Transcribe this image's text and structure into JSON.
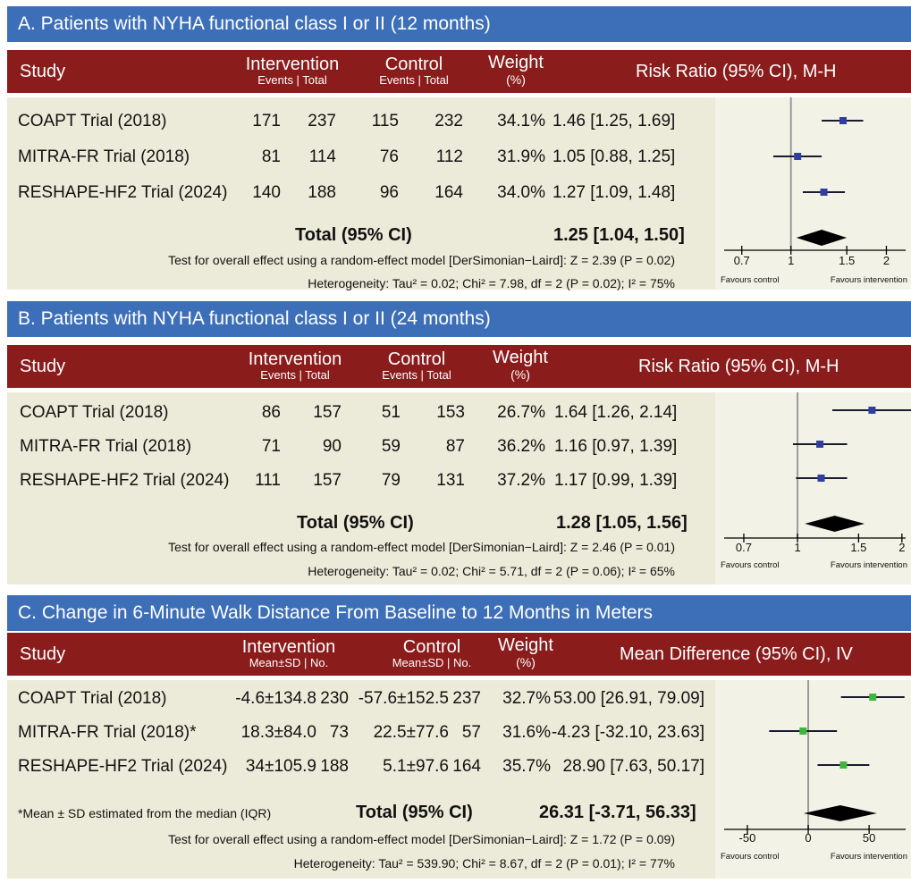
{
  "columns": {
    "study": "Study",
    "intervention": "Intervention",
    "control": "Control",
    "weight": "Weight",
    "weight_unit": "(%)",
    "events_total": "Events | Total",
    "mean_sd_no": "Mean±SD | No."
  },
  "chart_data": [
    {
      "type": "forest",
      "title": "A. Patients with NYHA functional class I or II (12 months)",
      "effect_header": "Risk Ratio (95% CI), M-H",
      "subheader": "Events | Total",
      "studies": [
        {
          "name": "COAPT Trial (2018)",
          "int_a": "171",
          "int_b": "237",
          "ctl_a": "115",
          "ctl_b": "232",
          "weight": "34.1%",
          "effect_text": "1.46 [1.25, 1.69]",
          "est": 1.46,
          "lo": 1.25,
          "hi": 1.69
        },
        {
          "name": "MITRA-FR Trial (2018)",
          "int_a": "81",
          "int_b": "114",
          "ctl_a": "76",
          "ctl_b": "112",
          "weight": "31.9%",
          "effect_text": "1.05 [0.88, 1.25]",
          "est": 1.05,
          "lo": 0.88,
          "hi": 1.25
        },
        {
          "name": "RESHAPE-HF2 Trial (2024)",
          "int_a": "140",
          "int_b": "188",
          "ctl_a": "96",
          "ctl_b": "164",
          "weight": "34.0%",
          "effect_text": "1.27 [1.09, 1.48]",
          "est": 1.27,
          "lo": 1.09,
          "hi": 1.48
        }
      ],
      "total_label": "Total (95% CI)",
      "total_text": "1.25 [1.04, 1.50]",
      "total": {
        "est": 1.25,
        "lo": 1.04,
        "hi": 1.5
      },
      "test_overall": "Test for overall effect using a random-effect model [DerSimonian−Laird]: Z = 2.39 (P = 0.02)",
      "heterogeneity": "Heterogeneity: Tau² = 0.02; Chi² = 7.98, df = 2 (P = 0.02); I² = 75%",
      "scale": "log",
      "xlim": [
        0.6,
        2.3
      ],
      "null_value": 1,
      "ticks": [
        {
          "v": 0.7,
          "label": "0.7"
        },
        {
          "v": 1,
          "label": "1"
        },
        {
          "v": 1.5,
          "label": "1.5"
        },
        {
          "v": 2,
          "label": "2"
        }
      ],
      "favours_left": "Favours control",
      "favours_right": "Favours intervention",
      "marker_color": "#2f3fa0",
      "note": ""
    },
    {
      "type": "forest",
      "title": "B. Patients with NYHA functional class I or II (24 months)",
      "effect_header": "Risk Ratio (95% CI), M-H",
      "subheader": "Events | Total",
      "studies": [
        {
          "name": "COAPT Trial (2018)",
          "int_a": "86",
          "int_b": "157",
          "ctl_a": "51",
          "ctl_b": "153",
          "weight": "26.7%",
          "effect_text": "1.64 [1.26, 2.14]",
          "est": 1.64,
          "lo": 1.26,
          "hi": 2.14
        },
        {
          "name": "MITRA-FR Trial (2018)",
          "int_a": "71",
          "int_b": "90",
          "ctl_a": "59",
          "ctl_b": "87",
          "weight": "36.2%",
          "effect_text": "1.16 [0.97, 1.39]",
          "est": 1.16,
          "lo": 0.97,
          "hi": 1.39
        },
        {
          "name": "RESHAPE-HF2 Trial (2024)",
          "int_a": "111",
          "int_b": "157",
          "ctl_a": "79",
          "ctl_b": "131",
          "weight": "37.2%",
          "effect_text": "1.17 [0.99, 1.39]",
          "est": 1.17,
          "lo": 0.99,
          "hi": 1.39
        }
      ],
      "total_label": "Total (95% CI)",
      "total_text": "1.28 [1.05, 1.56]",
      "total": {
        "est": 1.28,
        "lo": 1.05,
        "hi": 1.56
      },
      "test_overall": "Test for overall effect using a random-effect model [DerSimonian−Laird]: Z = 2.46 (P = 0.01)",
      "heterogeneity": "Heterogeneity: Tau² = 0.02; Chi² = 5.71, df = 2 (P = 0.06); I² = 65%",
      "scale": "log",
      "xlim": [
        0.6,
        2.05
      ],
      "null_value": 1,
      "ticks": [
        {
          "v": 0.7,
          "label": "0.7"
        },
        {
          "v": 1,
          "label": "1"
        },
        {
          "v": 1.5,
          "label": "1.5"
        },
        {
          "v": 2,
          "label": "2"
        }
      ],
      "favours_left": "Favours control",
      "favours_right": "Favours intervention",
      "marker_color": "#2f3fa0",
      "note": ""
    },
    {
      "type": "forest",
      "title": "C. Change in 6-Minute Walk Distance From Baseline to 12 Months in Meters",
      "effect_header": "Mean Difference (95% CI), IV",
      "subheader": "Mean±SD | No.",
      "studies": [
        {
          "name": "COAPT Trial (2018)",
          "int_a": "-4.6±134.8",
          "int_b": "230",
          "ctl_a": "-57.6±152.5",
          "ctl_b": "237",
          "weight": "32.7%",
          "effect_text": "53.00 [26.91, 79.09]",
          "est": 53.0,
          "lo": 26.91,
          "hi": 79.09
        },
        {
          "name": "MITRA-FR Trial (2018)*",
          "int_a": "18.3±84.0",
          "int_b": "73",
          "ctl_a": "22.5±77.6",
          "ctl_b": "57",
          "weight": "31.6%",
          "effect_text": "-4.23 [-32.10, 23.63]",
          "est": -4.23,
          "lo": -32.1,
          "hi": 23.63
        },
        {
          "name": "RESHAPE-HF2 Trial (2024)",
          "int_a": "34±105.9",
          "int_b": "188",
          "ctl_a": "5.1±97.6",
          "ctl_b": "164",
          "weight": "35.7%",
          "effect_text": "28.90 [7.63, 50.17]",
          "est": 28.9,
          "lo": 7.63,
          "hi": 50.17
        }
      ],
      "total_label": "Total (95% CI)",
      "total_text": "26.31 [-3.71, 56.33]",
      "total": {
        "est": 26.31,
        "lo": -3.71,
        "hi": 56.33
      },
      "test_overall": "Test for overall effect using a random-effect model [DerSimonian−Laird]: Z = 1.72 (P = 0.09)",
      "heterogeneity": "Heterogeneity: Tau² = 539.90; Chi² = 8.67, df = 2 (P = 0.01); I² = 77%",
      "scale": "linear",
      "xlim": [
        -72,
        80
      ],
      "null_value": 0,
      "ticks": [
        {
          "v": -50,
          "label": "-50"
        },
        {
          "v": 0,
          "label": "0"
        },
        {
          "v": 50,
          "label": "50"
        }
      ],
      "favours_left": "Favours control",
      "favours_right": "Favours intervention",
      "marker_color": "#3db83d",
      "note": "*Mean ± SD estimated from the median (IQR)"
    }
  ]
}
